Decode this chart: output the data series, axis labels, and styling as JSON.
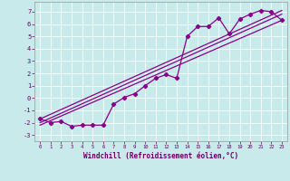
{
  "background_color": "#c8eaea",
  "grid_color": "#aaaaaa",
  "line_color": "#880088",
  "xlabel": "Windchill (Refroidissement éolien,°C)",
  "xlim": [
    -0.5,
    23.5
  ],
  "ylim": [
    -3.5,
    7.8
  ],
  "yticks": [
    -3,
    -2,
    -1,
    0,
    1,
    2,
    3,
    4,
    5,
    6,
    7
  ],
  "xticks": [
    0,
    1,
    2,
    3,
    4,
    5,
    6,
    7,
    8,
    9,
    10,
    11,
    12,
    13,
    14,
    15,
    16,
    17,
    18,
    19,
    20,
    21,
    22,
    23
  ],
  "main_series": {
    "x": [
      0,
      1,
      2,
      3,
      4,
      5,
      6,
      7,
      8,
      9,
      10,
      11,
      12,
      13,
      14,
      15,
      16,
      17,
      18,
      19,
      20,
      21,
      22,
      23
    ],
    "y": [
      -1.7,
      -2.0,
      -1.9,
      -2.3,
      -2.2,
      -2.2,
      -2.2,
      -0.5,
      0.05,
      0.35,
      1.0,
      1.6,
      1.9,
      1.6,
      5.0,
      5.8,
      5.8,
      6.5,
      5.2,
      6.4,
      6.8,
      7.1,
      7.0,
      6.3
    ]
  },
  "diagonal_lines": [
    {
      "x0": 0,
      "y0": -2.2,
      "x1": 23,
      "y1": 6.3
    },
    {
      "x0": 0,
      "y0": -1.7,
      "x1": 23,
      "y1": 7.1
    },
    {
      "x0": 0,
      "y0": -2.0,
      "x1": 23,
      "y1": 6.8
    }
  ]
}
